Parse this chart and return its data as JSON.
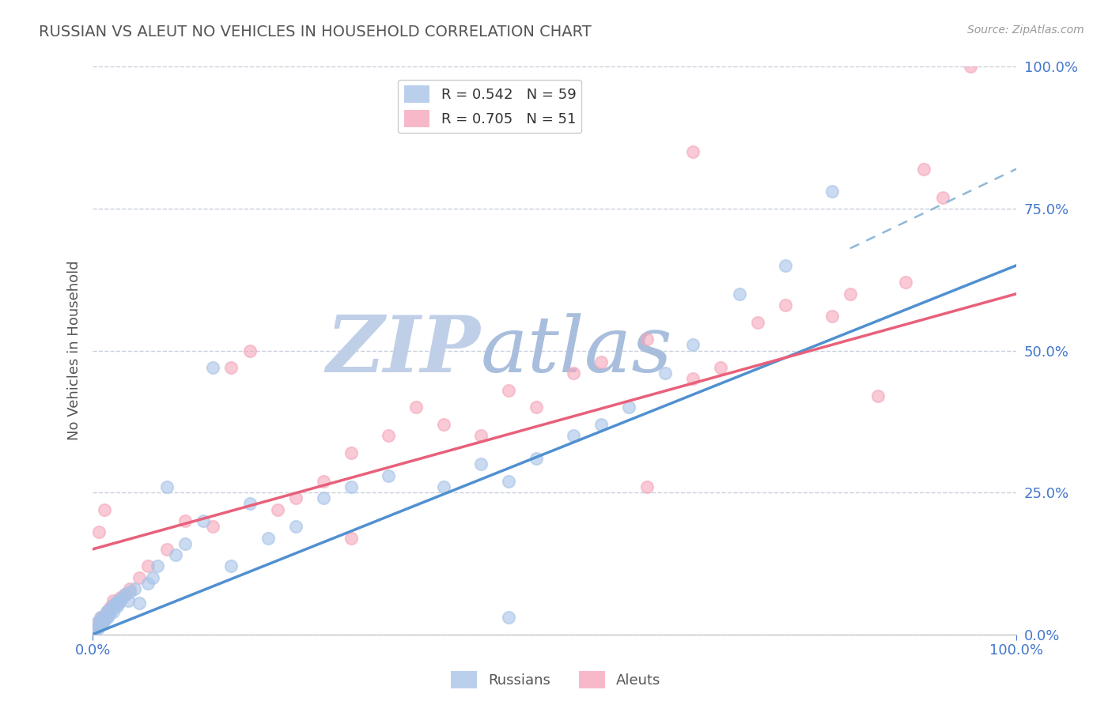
{
  "title": "RUSSIAN VS ALEUT NO VEHICLES IN HOUSEHOLD CORRELATION CHART",
  "source_text": "Source: ZipAtlas.com",
  "ylabel": "No Vehicles in Household",
  "xlim": [
    0,
    1.0
  ],
  "ylim": [
    0,
    1.0
  ],
  "xtick_labels": [
    "0.0%",
    "100.0%"
  ],
  "ytick_labels": [
    "0.0%",
    "25.0%",
    "50.0%",
    "75.0%",
    "100.0%"
  ],
  "ytick_vals": [
    0.0,
    0.25,
    0.5,
    0.75,
    1.0
  ],
  "xtick_vals": [
    0.0,
    1.0
  ],
  "R_russian": 0.542,
  "N_russian": 59,
  "R_aleut": 0.705,
  "N_aleut": 51,
  "russian_color": "#a8c4e8",
  "aleut_color": "#f5a8bc",
  "russian_line_color": "#5090d0",
  "aleut_line_color": "#e8607a",
  "dashed_line_color": "#90b8d8",
  "watermark_zip_color": "#c5d5ea",
  "watermark_atlas_color": "#a0b8d5",
  "title_color": "#555555",
  "grid_color": "#c8d0dc",
  "legend_label_russian": "R = 0.542   N = 59",
  "legend_label_aleut": "R = 0.705   N = 51",
  "footer_label_russians": "Russians",
  "footer_label_aleuts": "Aleuts",
  "russian_line_x0": 0.0,
  "russian_line_y0": 0.0,
  "russian_line_x1": 1.0,
  "russian_line_y1": 0.65,
  "aleut_line_x0": 0.0,
  "aleut_line_y0": 0.15,
  "aleut_line_x1": 1.0,
  "aleut_line_y1": 0.6,
  "russian_scatter_x": [
    0.003,
    0.005,
    0.006,
    0.007,
    0.008,
    0.009,
    0.01,
    0.011,
    0.012,
    0.013,
    0.014,
    0.015,
    0.016,
    0.017,
    0.018,
    0.019,
    0.02,
    0.021,
    0.022,
    0.024,
    0.025,
    0.026,
    0.027,
    0.028,
    0.03,
    0.032,
    0.035,
    0.038,
    0.04,
    0.045,
    0.05,
    0.06,
    0.065,
    0.07,
    0.08,
    0.09,
    0.1,
    0.12,
    0.13,
    0.15,
    0.17,
    0.19,
    0.22,
    0.25,
    0.28,
    0.32,
    0.38,
    0.42,
    0.45,
    0.48,
    0.52,
    0.55,
    0.58,
    0.62,
    0.65,
    0.7,
    0.75,
    0.8,
    0.45
  ],
  "russian_scatter_y": [
    0.01,
    0.02,
    0.01,
    0.015,
    0.03,
    0.02,
    0.025,
    0.02,
    0.03,
    0.025,
    0.03,
    0.04,
    0.03,
    0.04,
    0.035,
    0.04,
    0.045,
    0.05,
    0.04,
    0.05,
    0.055,
    0.05,
    0.06,
    0.055,
    0.06,
    0.065,
    0.07,
    0.06,
    0.075,
    0.08,
    0.055,
    0.09,
    0.1,
    0.12,
    0.26,
    0.14,
    0.16,
    0.2,
    0.47,
    0.12,
    0.23,
    0.17,
    0.19,
    0.24,
    0.26,
    0.28,
    0.26,
    0.3,
    0.27,
    0.31,
    0.35,
    0.37,
    0.4,
    0.46,
    0.51,
    0.6,
    0.65,
    0.78,
    0.03
  ],
  "aleut_scatter_x": [
    0.003,
    0.005,
    0.006,
    0.007,
    0.009,
    0.01,
    0.012,
    0.013,
    0.015,
    0.018,
    0.02,
    0.022,
    0.025,
    0.028,
    0.03,
    0.035,
    0.04,
    0.05,
    0.06,
    0.08,
    0.1,
    0.13,
    0.17,
    0.2,
    0.22,
    0.25,
    0.28,
    0.32,
    0.35,
    0.38,
    0.42,
    0.45,
    0.48,
    0.52,
    0.55,
    0.6,
    0.65,
    0.68,
    0.72,
    0.75,
    0.8,
    0.82,
    0.85,
    0.88,
    0.9,
    0.92,
    0.95,
    0.15,
    0.28,
    0.6,
    0.65
  ],
  "aleut_scatter_y": [
    0.01,
    0.02,
    0.015,
    0.18,
    0.03,
    0.02,
    0.03,
    0.22,
    0.04,
    0.045,
    0.05,
    0.06,
    0.055,
    0.06,
    0.065,
    0.07,
    0.08,
    0.1,
    0.12,
    0.15,
    0.2,
    0.19,
    0.5,
    0.22,
    0.24,
    0.27,
    0.32,
    0.35,
    0.4,
    0.37,
    0.35,
    0.43,
    0.4,
    0.46,
    0.48,
    0.52,
    0.45,
    0.47,
    0.55,
    0.58,
    0.56,
    0.6,
    0.42,
    0.62,
    0.82,
    0.77,
    1.0,
    0.47,
    0.17,
    0.26,
    0.85
  ]
}
